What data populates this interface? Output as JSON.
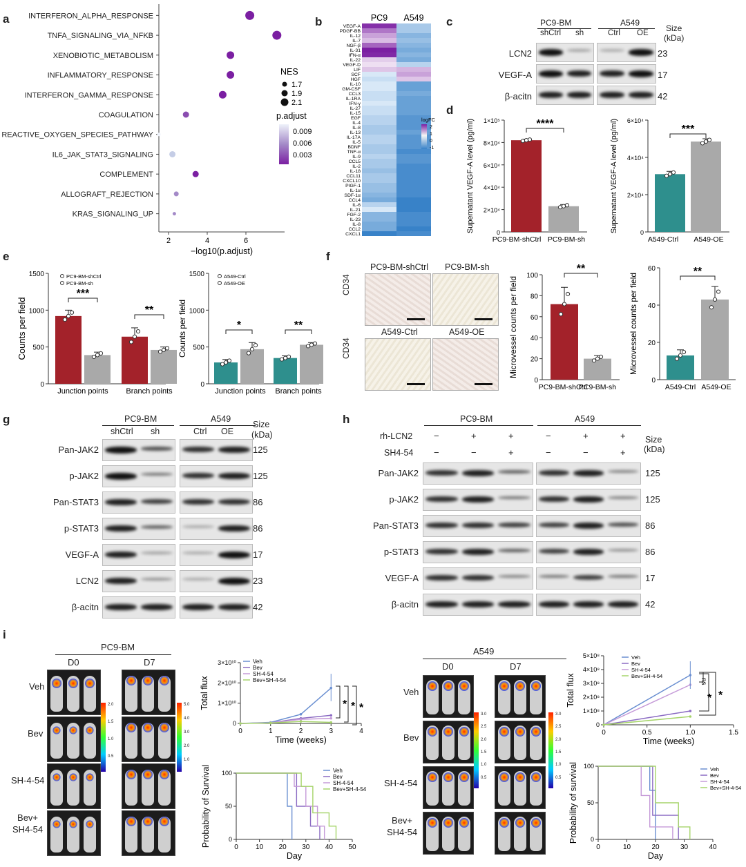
{
  "panel_letters": {
    "a": "a",
    "b": "b",
    "c": "c",
    "d": "d",
    "e": "e",
    "f": "f",
    "g": "g",
    "h": "h",
    "i": "i"
  },
  "a": {
    "pathways": [
      "INTERFERON_ALPHA_RESPONSE",
      "TNFA_SIGNALING_VIA_NFKB",
      "XENOBIOTIC_METABOLISM",
      "INFLAMMATORY_RESPONSE",
      "INTERFERON_GAMMA_RESPONSE",
      "COAGULATION",
      "REACTIVE_OXYGEN_SPECIES_PATHWAY",
      "IL6_JAK_STAT3_SIGNALING",
      "COMPLEMENT",
      "ALLOGRAFT_REJECTION",
      "KRAS_SIGNALING_UP"
    ],
    "xlabel": "−log10(p.adjust)",
    "xticks": [
      "2",
      "4",
      "6"
    ],
    "nes_title": "NES",
    "nes_values": [
      "1.7",
      "1.9",
      "2.1"
    ],
    "padj_title": "p.adjust",
    "padj_values": [
      "0.009",
      "0.006",
      "0.003"
    ]
  },
  "chart_data": [
    {
      "panel": "a",
      "type": "scatter",
      "xlabel": "−log10(p.adjust)",
      "xlim": [
        1.5,
        8
      ],
      "categories": [
        "INTERFERON_ALPHA_RESPONSE",
        "TNFA_SIGNALING_VIA_NFKB",
        "XENOBIOTIC_METABOLISM",
        "INFLAMMATORY_RESPONSE",
        "INTERFERON_GAMMA_RESPONSE",
        "COAGULATION",
        "REACTIVE_OXYGEN_SPECIES_PATHWAY",
        "IL6_JAK_STAT3_SIGNALING",
        "COMPLEMENT",
        "ALLOGRAFT_REJECTION",
        "KRAS_SIGNALING_UP"
      ],
      "x": [
        6.2,
        7.6,
        5.2,
        5.2,
        4.8,
        2.9,
        1.5,
        2.2,
        3.4,
        2.4,
        2.3
      ],
      "nes": [
        2.1,
        2.1,
        2.0,
        2.0,
        1.95,
        1.85,
        1.7,
        1.9,
        1.85,
        1.8,
        1.7
      ],
      "padj": [
        0.0007,
        0.0005,
        0.0008,
        0.0008,
        0.001,
        0.002,
        0.012,
        0.009,
        0.0015,
        0.006,
        0.005
      ]
    },
    {
      "panel": "b",
      "type": "heatmap",
      "columns": [
        "PC9",
        "A549"
      ],
      "rows": [
        "VEGF-A",
        "PDGF-BB",
        "IL-12",
        "IL-7",
        "NGF-β",
        "IL-31",
        "IFN-α",
        "IL-22",
        "VEGF-D",
        "LIF",
        "SCF",
        "HGF",
        "IL-10",
        "GM-CSF",
        "CCL3",
        "IL-1RA",
        "IFN-γ",
        "IL-27",
        "IL-15",
        "EGF",
        "IL-4",
        "IL-8",
        "IL-13",
        "IL-17A",
        "IL-5",
        "BDNF",
        "TNF-α",
        "IL-9",
        "CCL5",
        "IL-2",
        "IL-18",
        "CCL11",
        "CXCL10",
        "PIGF-1",
        "IL-1α",
        "SDF-1α",
        "CCL4",
        "IL-6",
        "IL-21",
        "FGF-2",
        "IL-23",
        "IL-8",
        "CCL2",
        "CXCL1"
      ],
      "pc9": [
        2.1,
        1.3,
        0.8,
        0.5,
        1.5,
        2.3,
        2.2,
        0.3,
        0.1,
        0.4,
        -0.1,
        -0.2,
        -0.1,
        -0.1,
        -0.2,
        -0.2,
        -0.1,
        -0.2,
        -0.2,
        -0.3,
        -0.3,
        -0.4,
        -0.4,
        -0.3,
        -0.3,
        -0.4,
        -0.4,
        -0.3,
        -0.4,
        -0.4,
        -0.5,
        -0.4,
        -0.4,
        -0.5,
        -0.5,
        -0.6,
        -0.7,
        -0.3,
        -0.1,
        -0.6,
        -0.6,
        -0.7,
        -0.7,
        -1.1
      ],
      "a549": [
        -0.4,
        -0.4,
        -0.6,
        -0.5,
        -0.6,
        -0.7,
        -0.6,
        -0.7,
        -0.3,
        0.6,
        0.8,
        0.4,
        -0.8,
        -0.8,
        -0.7,
        -0.8,
        -0.8,
        -0.8,
        -0.8,
        -0.9,
        -0.9,
        -0.9,
        -0.8,
        -0.9,
        -0.9,
        -0.9,
        -1.0,
        -0.9,
        -0.9,
        -1.0,
        -1.0,
        -1.0,
        -1.0,
        -1.0,
        -1.0,
        -1.0,
        -1.1,
        -1.1,
        -1.1,
        -1.0,
        -1.0,
        -1.0,
        -1.1,
        -1.0
      ],
      "legend_title": "logFC",
      "legend_ticks": [
        "2",
        "1",
        "0",
        "-1"
      ]
    },
    {
      "panel": "d1",
      "type": "bar",
      "categories": [
        "PC9-BM-shCtrl",
        "PC9-BM-sh"
      ],
      "values": [
        82000,
        23000
      ],
      "errors": [
        1000,
        1500
      ],
      "ylabel": "Supernatant VEGF-A level (pg/ml)",
      "ylim": [
        0,
        100000
      ],
      "sig": "****"
    },
    {
      "panel": "d2",
      "type": "bar",
      "categories": [
        "A549-Ctrl",
        "A549-OE"
      ],
      "values": [
        31000,
        48500
      ],
      "errors": [
        1500,
        1500
      ],
      "ylabel": "Supernatant VEGF-A level (pg/ml)",
      "ylim": [
        0,
        60000
      ],
      "sig": "***"
    },
    {
      "panel": "e1",
      "type": "bar",
      "categories": [
        "Junction points",
        "Branch points"
      ],
      "series": [
        {
          "name": "PC9-BM-shCtrl",
          "values": [
            920,
            640
          ]
        },
        {
          "name": "PC9-BM-sh",
          "values": [
            390,
            460
          ]
        }
      ],
      "errors": [
        [
          80,
          120
        ],
        [
          40,
          40
        ]
      ],
      "ylabel": "Counts per field",
      "ylim": [
        0,
        1500
      ],
      "sig": [
        "***",
        "**"
      ]
    },
    {
      "panel": "e2",
      "type": "bar",
      "categories": [
        "Junction points",
        "Branch points"
      ],
      "series": [
        {
          "name": "A549-Ctrl",
          "values": [
            290,
            350
          ]
        },
        {
          "name": "A549-OE",
          "values": [
            470,
            530
          ]
        }
      ],
      "errors": [
        [
          40,
          30
        ],
        [
          90,
          30
        ]
      ],
      "ylabel": "Counts per field",
      "ylim": [
        0,
        1500
      ],
      "sig": [
        "*",
        "**"
      ]
    },
    {
      "panel": "f1",
      "type": "bar",
      "categories": [
        "PC9-BM-shCtrl",
        "PC9-BM-sh"
      ],
      "values": [
        72,
        20
      ],
      "errors": [
        16,
        3
      ],
      "ylabel": "Microvessel counts per field",
      "ylim": [
        0,
        100
      ],
      "sig": "**"
    },
    {
      "panel": "f2",
      "type": "bar",
      "categories": [
        "A549-Ctrl",
        "A549-OE"
      ],
      "values": [
        13,
        43
      ],
      "errors": [
        3,
        7
      ],
      "ylabel": "Microvessel counts per field",
      "ylim": [
        0,
        60
      ],
      "sig": "**"
    },
    {
      "panel": "i1",
      "type": "line",
      "title": "",
      "xlabel": "Time (weeks)",
      "ylabel": "Total flux",
      "x": [
        0,
        1,
        2,
        3
      ],
      "xlim": [
        0,
        4
      ],
      "ylim": [
        0,
        30000000000
      ],
      "series": [
        {
          "name": "Veh",
          "values": [
            0,
            500000000,
            4500000000,
            17500000000
          ]
        },
        {
          "name": "Bev",
          "values": [
            0,
            300000000,
            2500000000,
            4000000000
          ]
        },
        {
          "name": "SH-4-54",
          "values": [
            0,
            300000000,
            2000000000,
            2500000000
          ]
        },
        {
          "name": "Bev+SH-4-54",
          "values": [
            0,
            200000000,
            1000000000,
            500000000
          ]
        }
      ],
      "sig": [
        "*",
        "*",
        "*"
      ]
    },
    {
      "panel": "i2",
      "type": "line",
      "xlabel": "Day",
      "ylabel": "Probability of Survival",
      "xlim": [
        0,
        50
      ],
      "ylim": [
        0,
        100
      ],
      "series": [
        {
          "name": "Veh",
          "points": [
            [
              0,
              100
            ],
            [
              22,
              100
            ],
            [
              22,
              50
            ],
            [
              24,
              50
            ],
            [
              24,
              0
            ]
          ]
        },
        {
          "name": "Bev",
          "points": [
            [
              0,
              100
            ],
            [
              26,
              100
            ],
            [
              26,
              50
            ],
            [
              32,
              50
            ],
            [
              32,
              20
            ],
            [
              36,
              20
            ],
            [
              36,
              0
            ]
          ]
        },
        {
          "name": "SH-4-54",
          "points": [
            [
              0,
              100
            ],
            [
              25,
              100
            ],
            [
              25,
              80
            ],
            [
              30,
              80
            ],
            [
              30,
              50
            ],
            [
              35,
              50
            ],
            [
              35,
              20
            ],
            [
              38,
              20
            ],
            [
              38,
              0
            ]
          ]
        },
        {
          "name": "Bev+SH-4-54",
          "points": [
            [
              0,
              100
            ],
            [
              28,
              100
            ],
            [
              28,
              80
            ],
            [
              33,
              80
            ],
            [
              33,
              40
            ],
            [
              40,
              40
            ],
            [
              40,
              20
            ],
            [
              43,
              20
            ],
            [
              43,
              0
            ]
          ]
        }
      ]
    },
    {
      "panel": "i3",
      "type": "line",
      "xlabel": "Time (weeks)",
      "ylabel": "Total flux",
      "x": [
        0,
        1
      ],
      "xlim": [
        0,
        1.5
      ],
      "ylim": [
        0,
        500000000
      ],
      "series": [
        {
          "name": "Veh",
          "values": [
            0,
            360000000
          ]
        },
        {
          "name": "Bev",
          "values": [
            0,
            100000000
          ]
        },
        {
          "name": "SH-4-54",
          "values": [
            0,
            290000000
          ]
        },
        {
          "name": "Bev+SH-4-54",
          "values": [
            0,
            60000000
          ]
        }
      ],
      "sig": [
        "ns",
        "*",
        "*"
      ]
    },
    {
      "panel": "i4",
      "type": "line",
      "xlabel": "Day",
      "ylabel": "Probability of survival",
      "xlim": [
        0,
        40
      ],
      "ylim": [
        0,
        100
      ],
      "series": [
        {
          "name": "Veh",
          "points": [
            [
              0,
              100
            ],
            [
              18,
              100
            ],
            [
              18,
              67
            ],
            [
              20,
              67
            ],
            [
              20,
              0
            ]
          ]
        },
        {
          "name": "Bev",
          "points": [
            [
              0,
              100
            ],
            [
              19,
              100
            ],
            [
              19,
              33
            ],
            [
              28,
              33
            ],
            [
              28,
              0
            ]
          ]
        },
        {
          "name": "SH-4-54",
          "points": [
            [
              0,
              100
            ],
            [
              15,
              100
            ],
            [
              15,
              60
            ],
            [
              18,
              60
            ],
            [
              18,
              17
            ],
            [
              26,
              17
            ],
            [
              26,
              0
            ]
          ]
        },
        {
          "name": "Bev+SH-4-54",
          "points": [
            [
              0,
              100
            ],
            [
              20,
              100
            ],
            [
              20,
              50
            ],
            [
              28,
              50
            ],
            [
              28,
              17
            ],
            [
              32,
              17
            ],
            [
              32,
              0
            ]
          ]
        }
      ]
    }
  ],
  "c": {
    "group1": "PC9-BM",
    "group2": "A549",
    "lanes": [
      "shCtrl",
      "sh",
      "Ctrl",
      "OE"
    ],
    "size": "Size",
    "kda": "(kDa)",
    "rows": [
      {
        "name": "LCN2",
        "size": "23"
      },
      {
        "name": "VEGF-A",
        "size": "17"
      },
      {
        "name": "β-acitn",
        "size": "42"
      }
    ]
  },
  "d": {
    "ytick1": [
      "0",
      "2×10⁴",
      "4×10⁴",
      "6×10⁴",
      "8×10⁴",
      "1×10⁵"
    ],
    "ytick2": [
      "0",
      "2×10⁴",
      "4×10⁴",
      "6×10⁴"
    ]
  },
  "e": {
    "leg1": [
      "PC9-BM-shCtrl",
      "PC9-BM-sh"
    ],
    "leg2": [
      "A549-Ctrl",
      "A549-OE"
    ],
    "yticks": [
      "0",
      "500",
      "1000",
      "1500"
    ]
  },
  "f": {
    "titles": [
      "PC9-BM-shCtrl",
      "PC9-BM-sh",
      "A549-Ctrl",
      "A549-OE"
    ],
    "stain": "CD34"
  },
  "g": {
    "group1": "PC9-BM",
    "group2": "A549",
    "lanes": [
      "shCtrl",
      "sh",
      "Ctrl",
      "OE"
    ],
    "size": "Size",
    "kda": "(kDa)",
    "rows": [
      {
        "name": "Pan-JAK2",
        "size": "125"
      },
      {
        "name": "p-JAK2",
        "size": "125"
      },
      {
        "name": "Pan-STAT3",
        "size": "86"
      },
      {
        "name": "p-STAT3",
        "size": "86"
      },
      {
        "name": "VEGF-A",
        "size": "17"
      },
      {
        "name": "LCN2",
        "size": "23"
      },
      {
        "name": "β-acitn",
        "size": "42"
      }
    ]
  },
  "h": {
    "group1": "PC9-BM",
    "group2": "A549",
    "cond1": "rh-LCN2",
    "cond2": "SH4-54",
    "size": "Size",
    "kda": "(kDa)",
    "row1": [
      "−",
      "+",
      "+",
      "−",
      "+",
      "+"
    ],
    "row2": [
      "−",
      "−",
      "+",
      "−",
      "−",
      "+"
    ],
    "rows": [
      {
        "name": "Pan-JAK2",
        "size": "125"
      },
      {
        "name": "p-JAK2",
        "size": "125"
      },
      {
        "name": "Pan-STAT3",
        "size": "86"
      },
      {
        "name": "p-STAT3",
        "size": "86"
      },
      {
        "name": "VEGF-A",
        "size": "17"
      },
      {
        "name": "β-acitn",
        "size": "42"
      }
    ]
  },
  "i": {
    "left_title": "PC9-BM",
    "right_title": "A549",
    "d0": "D0",
    "d7": "D7",
    "groups_left": [
      "Veh",
      "Bev",
      "SH-4-54",
      "Bev+\nSH4-54"
    ],
    "groups_right": [
      "Veh",
      "Bev",
      "SH-4-54",
      "Bev+\nSH4-54"
    ],
    "legend": [
      "Veh",
      "Bev",
      "SH-4-54",
      "Bev+SH-4-54"
    ],
    "flux_ticks_left": [
      "0",
      "1×10¹⁰",
      "2×10¹⁰",
      "3×10¹⁰"
    ],
    "flux_ticks_right": [
      "0",
      "1×10⁸",
      "2×10⁸",
      "3×10⁸",
      "4×10⁸",
      "5×10⁸"
    ],
    "cb_ticks_a": [
      "2.0",
      "1.5",
      "1.0",
      "0.5"
    ],
    "cb_ticks_b": [
      "5.0",
      "4.0",
      "3.0",
      "2.0",
      "1.0"
    ],
    "cb_ticks_c": [
      "3.0",
      "2.5",
      "2.0",
      "1.5",
      "1.0",
      "0.5"
    ],
    "cb_unit": "×10⁸"
  },
  "colors": {
    "red": "#a3222a",
    "gray": "#a9a9a9",
    "teal": "#2e8f8d",
    "purple": "#7b1fa2",
    "veh": "#6a8fd1",
    "bev": "#8b6bc3",
    "sh": "#c59ad8",
    "combo": "#a6d46a"
  }
}
